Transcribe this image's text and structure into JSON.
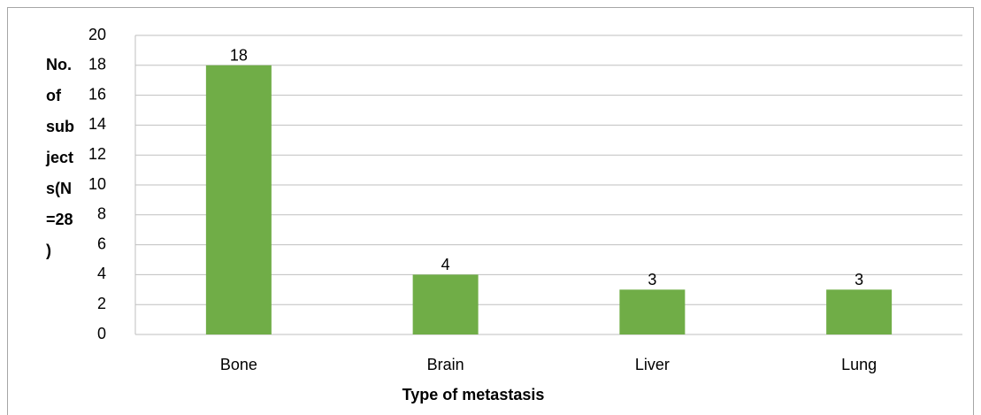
{
  "chart_data": {
    "type": "bar",
    "y_label_lines": [
      "No.",
      "of",
      "sub",
      "ject",
      "s(N",
      "=28",
      ")"
    ],
    "x_label": "Type of metastasis",
    "categories": [
      "Bone",
      "Brain",
      "Liver",
      "Lung"
    ],
    "values": [
      18,
      4,
      3,
      3
    ],
    "color": "#70ad47",
    "ylim": [
      0,
      20
    ],
    "yticks": [
      0,
      2,
      4,
      6,
      8,
      10,
      12,
      14,
      16,
      18,
      20
    ],
    "grid": true
  }
}
